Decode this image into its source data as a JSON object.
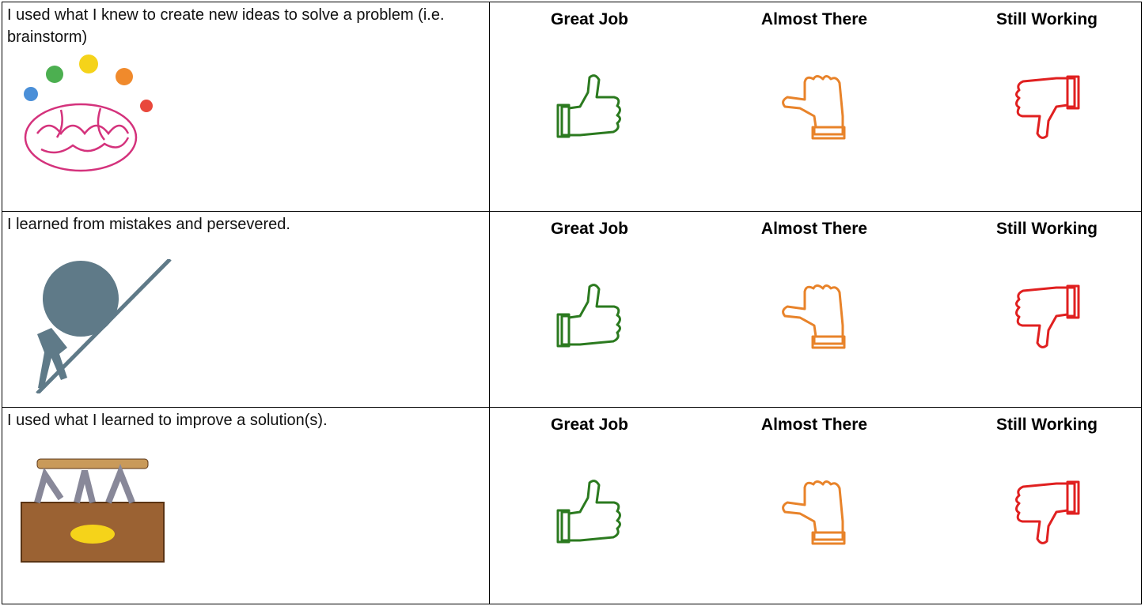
{
  "table": {
    "rows": [
      {
        "statement": "I used what I knew to create new ideas to solve a problem (i.e. brainstorm)",
        "ratings": [
          "Great Job",
          "Almost There",
          "Still Working"
        ]
      },
      {
        "statement": "I learned from mistakes and persevered.",
        "ratings": [
          "Great Job",
          "Almost There",
          "Still Working"
        ]
      },
      {
        "statement": "I used what I learned to improve a solution(s).",
        "ratings": [
          "Great Job",
          "Almost There",
          "Still Working"
        ]
      }
    ]
  }
}
